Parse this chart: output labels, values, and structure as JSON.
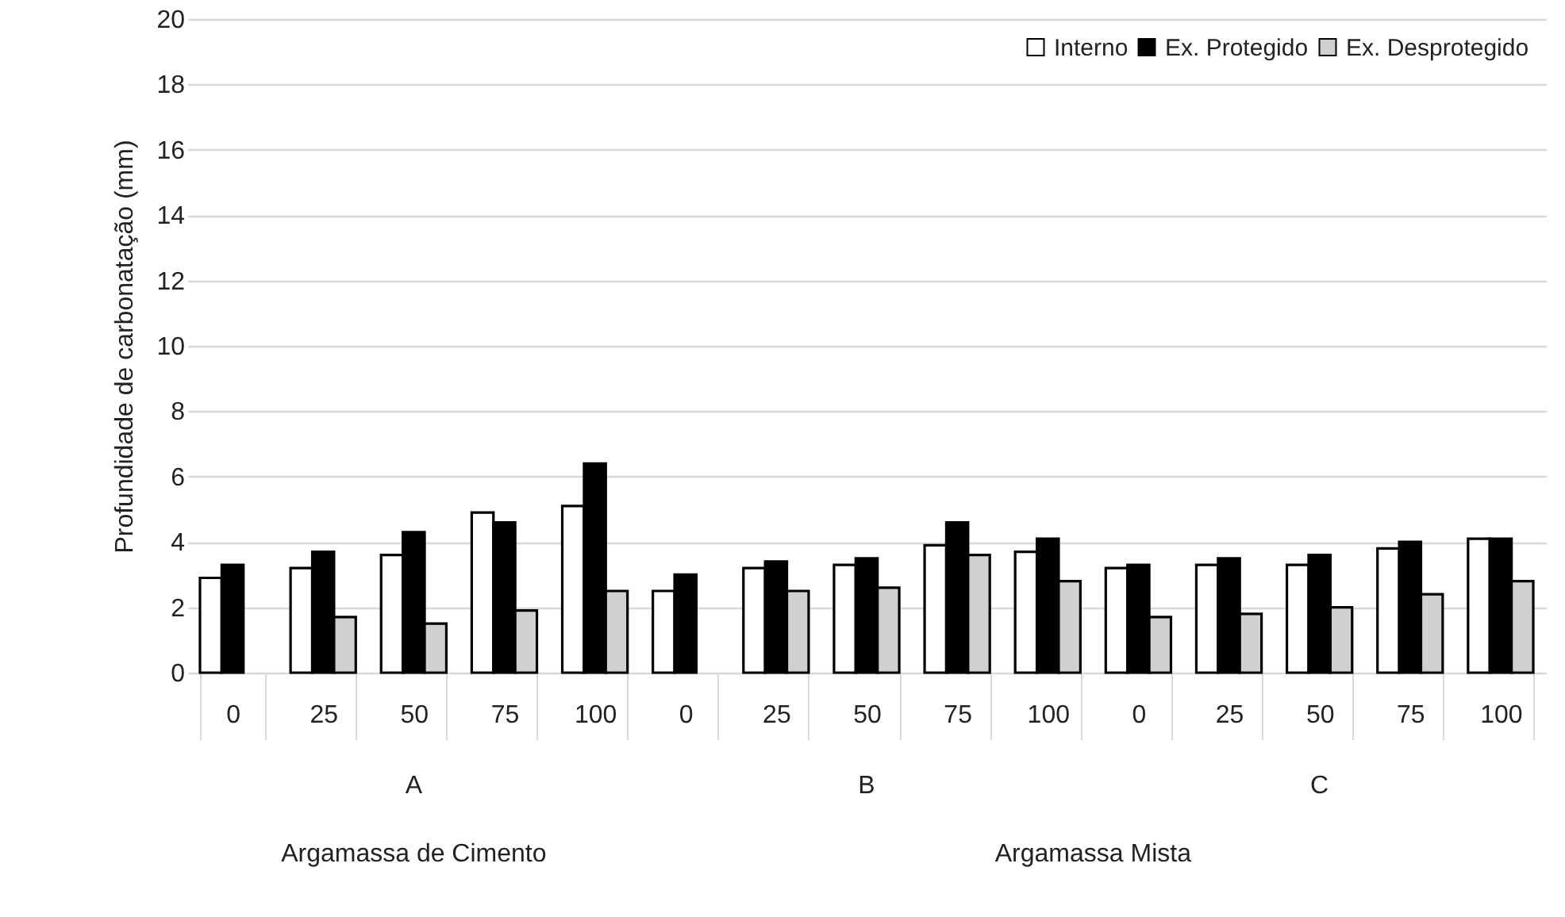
{
  "chart_data": {
    "type": "bar",
    "ylabel": "Profundidade de carbonatação (mm)",
    "categories": [
      "0",
      "25",
      "50",
      "75",
      "100",
      "0",
      "25",
      "50",
      "75",
      "100",
      "0",
      "25",
      "50",
      "75",
      "100"
    ],
    "series": [
      {
        "name": "Interno",
        "color": "#ffffff",
        "values": [
          2.9,
          3.2,
          3.6,
          4.9,
          5.1,
          2.5,
          3.2,
          3.3,
          3.9,
          3.7,
          3.2,
          3.3,
          3.3,
          3.8,
          4.1
        ]
      },
      {
        "name": "Ex. Protegido",
        "color": "#000000",
        "values": [
          3.3,
          3.7,
          4.3,
          4.6,
          6.4,
          3.0,
          3.4,
          3.5,
          4.6,
          4.1,
          3.3,
          3.5,
          3.6,
          4.0,
          4.1
        ]
      },
      {
        "name": "Ex. Desprotegido",
        "color": "#d0d0d0",
        "values": [
          null,
          1.7,
          1.5,
          1.9,
          2.5,
          null,
          2.5,
          2.6,
          3.6,
          2.8,
          1.7,
          1.8,
          2.0,
          2.4,
          2.8
        ]
      }
    ],
    "ylim": [
      0,
      20
    ],
    "yticks": [
      0,
      2,
      4,
      6,
      8,
      10,
      12,
      14,
      16,
      18,
      20
    ],
    "grid": "y",
    "legend": "top right",
    "annotations": [
      "A",
      "B",
      "C",
      "Argamassa de Cimento",
      "Argamassa Mista"
    ]
  }
}
